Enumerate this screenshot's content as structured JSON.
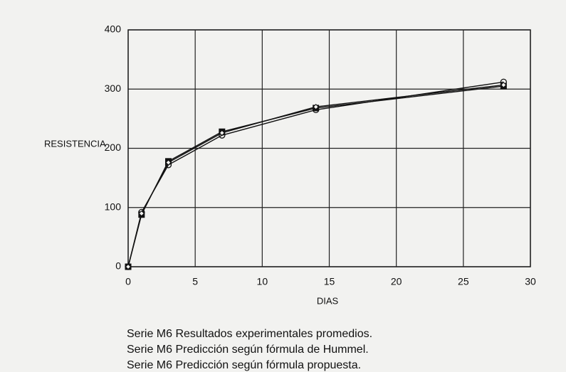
{
  "chart_data": {
    "type": "line",
    "x_label": "DIAS",
    "y_label": "RESISTENCIA",
    "x": [
      0,
      1,
      3,
      7,
      14,
      28
    ],
    "series": [
      {
        "name": "Serie M6 Resultados experimentales promedios.",
        "color": "#111111",
        "marker": "square",
        "values": [
          0,
          88,
          178,
          228,
          268,
          305
        ]
      },
      {
        "name": "Serie M6 Predicción según fórmula de Hummel.",
        "color": "#111111",
        "marker": "circle",
        "values": [
          0,
          92,
          172,
          222,
          265,
          312
        ]
      },
      {
        "name": "Serie M6 Predicción según fórmula propuesta.",
        "color": "#111111",
        "marker": "diamond",
        "values": [
          0,
          90,
          176,
          226,
          270,
          307
        ]
      }
    ],
    "xlim": [
      0,
      30
    ],
    "xticks": [
      0,
      5,
      10,
      15,
      20,
      25,
      30
    ],
    "ylim": [
      0,
      400
    ],
    "yticks": [
      0,
      100,
      200,
      300,
      400
    ],
    "grid": true
  }
}
